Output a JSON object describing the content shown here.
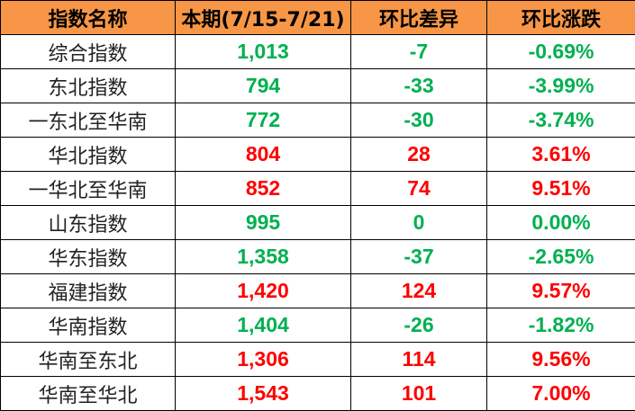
{
  "headers": [
    "指数名称",
    "本期(7/15-7/21)",
    "环比差异",
    "环比涨跌"
  ],
  "colors": {
    "header_bg": "#F79646",
    "up": "#FF0000",
    "down": "#00B050"
  },
  "rows": [
    {
      "name": "综合指数",
      "value": "1,013",
      "diff": "-7",
      "pct": "-0.69%",
      "trend": "down"
    },
    {
      "name": "东北指数",
      "value": "794",
      "diff": "-33",
      "pct": "-3.99%",
      "trend": "down"
    },
    {
      "name": "一东北至华南",
      "value": "772",
      "diff": "-30",
      "pct": "-3.74%",
      "trend": "down"
    },
    {
      "name": "华北指数",
      "value": "804",
      "diff": "28",
      "pct": "3.61%",
      "trend": "up"
    },
    {
      "name": "一华北至华南",
      "value": "852",
      "diff": "74",
      "pct": "9.51%",
      "trend": "up"
    },
    {
      "name": "山东指数",
      "value": "995",
      "diff": "0",
      "pct": "0.00%",
      "trend": "down"
    },
    {
      "name": "华东指数",
      "value": "1,358",
      "diff": "-37",
      "pct": "-2.65%",
      "trend": "down"
    },
    {
      "name": "福建指数",
      "value": "1,420",
      "diff": "124",
      "pct": "9.57%",
      "trend": "up"
    },
    {
      "name": "华南指数",
      "value": "1,404",
      "diff": "-26",
      "pct": "-1.82%",
      "trend": "down"
    },
    {
      "name": "华南至东北",
      "value": "1,306",
      "diff": "114",
      "pct": "9.56%",
      "trend": "up"
    },
    {
      "name": "华南至华北",
      "value": "1,543",
      "diff": "101",
      "pct": "7.00%",
      "trend": "up"
    }
  ]
}
